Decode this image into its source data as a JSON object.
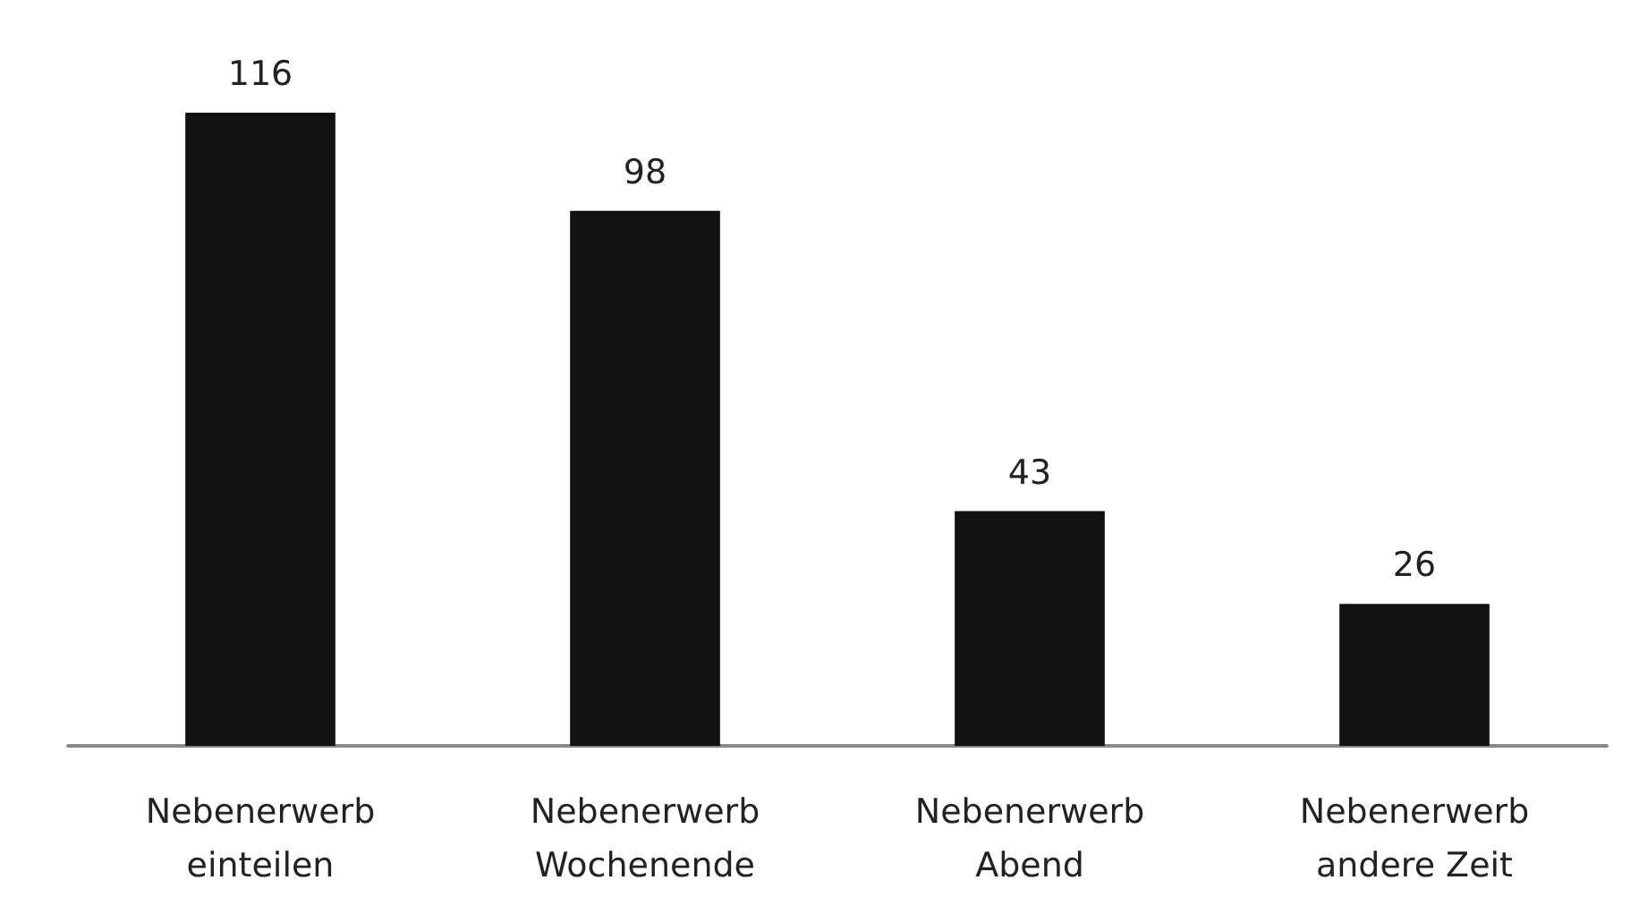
{
  "chart_data": {
    "type": "bar",
    "categories": [
      "Nebenerwerb\neinteilen",
      "Nebenerwerb\nWochenende",
      "Nebenerwerb\nAbend",
      "Nebenerwerb\nandere Zeit"
    ],
    "values": [
      116,
      98,
      43,
      26
    ],
    "color": "#111111",
    "data_labels": true
  }
}
